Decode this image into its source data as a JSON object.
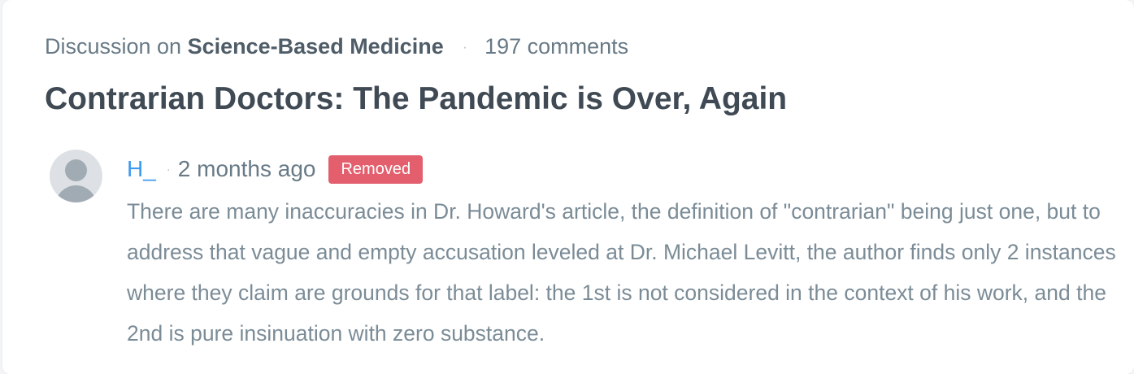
{
  "discussion": {
    "prefix": "Discussion on",
    "site_name": "Science-Based Medicine",
    "separator": "·",
    "comment_count": "197 comments",
    "title": "Contrarian Doctors: The Pandemic is Over, Again"
  },
  "comment": {
    "avatar_icon": "default-user-avatar-icon",
    "author": "H_",
    "separator": "·",
    "time_ago": "2 months ago",
    "badge": "Removed",
    "badge_color": "#e35f6d",
    "body": "There are many inaccuracies in Dr. Howard's article, the definition of \"contrarian\" being just one, but to address that vague and empty accusation leveled at Dr. Michael Levitt, the author finds only 2 instances where they claim are grounds for that label: the 1st is not considered in the context of his work, and the 2nd is pure insinuation with zero substance."
  },
  "colors": {
    "author_link": "#3d9af0",
    "title": "#3f4a54",
    "muted_text": "#687a86"
  }
}
